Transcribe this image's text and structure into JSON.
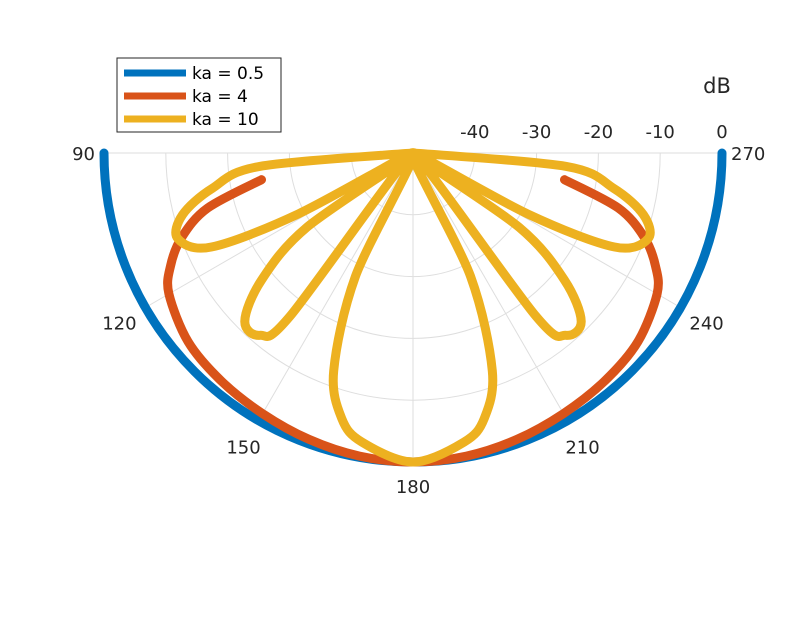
{
  "chart_data": {
    "type": "line",
    "subtype": "polar-half",
    "unit_label": "dB",
    "r_ticks": [
      "-40",
      "-30",
      "-20",
      "-10",
      "0"
    ],
    "r_range": [
      -50,
      0
    ],
    "theta_ticks": [
      "90",
      "120",
      "150",
      "180",
      "210",
      "240",
      "270"
    ],
    "theta_range": [
      90,
      270
    ],
    "grid": true,
    "legend_position": "top-left",
    "series": [
      {
        "name": "ka = 0.5",
        "color": "#0072bd",
        "theta": [
          90,
          100,
          110,
          120,
          130,
          140,
          150,
          160,
          170,
          180,
          190,
          200,
          210,
          220,
          230,
          240,
          250,
          260,
          270
        ],
        "r": [
          0,
          0,
          0,
          0,
          0,
          0,
          0,
          0,
          0,
          0,
          0,
          0,
          0,
          0,
          0,
          0,
          0,
          0,
          0
        ]
      },
      {
        "name": "ka = 4",
        "color": "#d95319",
        "theta": [
          100,
          105,
          110,
          115,
          120,
          130,
          140,
          150,
          160,
          170,
          180,
          190,
          200,
          210,
          220,
          230,
          240,
          245,
          250,
          255,
          260
        ],
        "r": [
          -25.1,
          -15.6,
          -10.2,
          -6.7,
          -4.4,
          -2.5,
          -1.8,
          -1.3,
          -0.7,
          -0.2,
          0,
          -0.2,
          -0.7,
          -1.3,
          -1.8,
          -2.5,
          -4.4,
          -6.7,
          -10.2,
          -15.6,
          -25.1
        ]
      },
      {
        "name": "ka = 10",
        "color": "#edb120",
        "theta": [
          90,
          95,
          100,
          105,
          110,
          115,
          118,
          122,
          125,
          130,
          135,
          140,
          143,
          148,
          155,
          160,
          165,
          170,
          180,
          190,
          195,
          200,
          205,
          212,
          217,
          220,
          225,
          230,
          235,
          238,
          242,
          245,
          250,
          255,
          260,
          265,
          270
        ],
        "r": [
          -50,
          -25.1,
          -17,
          -11.4,
          -9.5,
          -14,
          -29,
          -50,
          -29,
          -18,
          -11.5,
          -11.5,
          -17,
          -50,
          -28,
          -12.5,
          -5.5,
          -2.5,
          0,
          -2.5,
          -5.5,
          -12.5,
          -28,
          -50,
          -17,
          -11.5,
          -11.5,
          -18,
          -29,
          -50,
          -29,
          -14,
          -9.5,
          -11.4,
          -17,
          -25.1,
          -50
        ]
      }
    ]
  }
}
